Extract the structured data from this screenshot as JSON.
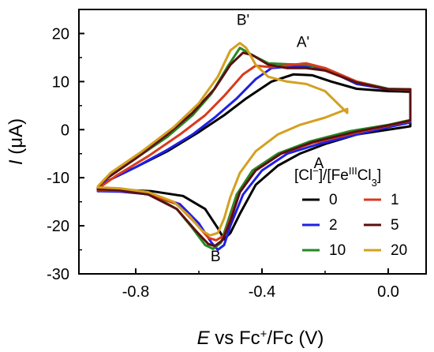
{
  "chart_data": {
    "type": "line",
    "xlabel": {
      "italic": "E",
      "rest": " vs Fc",
      "sup": "+",
      "rest2": "/Fc (V)"
    },
    "ylabel": {
      "italic": "I",
      "rest": " (μA)"
    },
    "xlim": [
      -0.98,
      0.12
    ],
    "ylim": [
      -30,
      25
    ],
    "xticks": [
      -0.8,
      -0.4,
      0.0
    ],
    "xtick_labels": [
      "-0.8",
      "-0.4",
      "0.0"
    ],
    "yticks": [
      -30,
      -20,
      -10,
      0,
      10,
      20
    ],
    "ytick_labels": [
      "-30",
      "-20",
      "-10",
      "0",
      "10",
      "20"
    ],
    "annotations": [
      {
        "text": "B'",
        "x": -0.46,
        "y": 21.8
      },
      {
        "text": "A'",
        "x": -0.27,
        "y": 17.2
      },
      {
        "text": "A",
        "x": -0.22,
        "y": -8.0
      },
      {
        "text": "B",
        "x": -0.547,
        "y": -27.4
      }
    ],
    "legend": {
      "title_parts": [
        "[Cl",
        "−",
        "]/[Fe",
        "III",
        "Cl",
        "3",
        "]"
      ],
      "placement": "bottom-right",
      "entries": [
        {
          "label": "0",
          "color": "#000000"
        },
        {
          "label": "1",
          "color": "#d93a1c"
        },
        {
          "label": "2",
          "color": "#1f1fe6"
        },
        {
          "label": "5",
          "color": "#5a1010"
        },
        {
          "label": "10",
          "color": "#238a23"
        },
        {
          "label": "20",
          "color": "#d4a020"
        }
      ]
    },
    "series": [
      {
        "name": "0",
        "color": "#000000",
        "points": [
          [
            -0.92,
            -12.5
          ],
          [
            -0.85,
            -12.5
          ],
          [
            -0.75,
            -12.8
          ],
          [
            -0.65,
            -13.8
          ],
          [
            -0.58,
            -16.5
          ],
          [
            -0.54,
            -20.5
          ],
          [
            -0.52,
            -22.8
          ],
          [
            -0.5,
            -21.5
          ],
          [
            -0.47,
            -17.5
          ],
          [
            -0.42,
            -11.5
          ],
          [
            -0.35,
            -7.5
          ],
          [
            -0.28,
            -5.0
          ],
          [
            -0.2,
            -3.0
          ],
          [
            -0.1,
            -1.0
          ],
          [
            0.0,
            0.0
          ],
          [
            0.07,
            0.7
          ],
          [
            0.07,
            7.9
          ],
          [
            0.0,
            8.0
          ],
          [
            -0.1,
            8.5
          ],
          [
            -0.18,
            10.0
          ],
          [
            -0.24,
            11.3
          ],
          [
            -0.3,
            11.5
          ],
          [
            -0.37,
            10.0
          ],
          [
            -0.45,
            6.5
          ],
          [
            -0.52,
            3.0
          ],
          [
            -0.6,
            -0.5
          ],
          [
            -0.7,
            -4.5
          ],
          [
            -0.8,
            -7.8
          ],
          [
            -0.9,
            -11.0
          ],
          [
            -0.92,
            -12.2
          ]
        ]
      },
      {
        "name": "2",
        "color": "#1f1fe6",
        "points": [
          [
            -0.92,
            -12.8
          ],
          [
            -0.85,
            -12.9
          ],
          [
            -0.75,
            -13.5
          ],
          [
            -0.66,
            -15.5
          ],
          [
            -0.6,
            -19.5
          ],
          [
            -0.56,
            -23.5
          ],
          [
            -0.54,
            -25.0
          ],
          [
            -0.52,
            -24.0
          ],
          [
            -0.5,
            -20.0
          ],
          [
            -0.46,
            -13.5
          ],
          [
            -0.4,
            -8.5
          ],
          [
            -0.32,
            -5.0
          ],
          [
            -0.22,
            -3.0
          ],
          [
            -0.1,
            -1.0
          ],
          [
            0.0,
            0.5
          ],
          [
            0.07,
            1.5
          ],
          [
            0.07,
            8.3
          ],
          [
            0.0,
            8.4
          ],
          [
            -0.1,
            9.5
          ],
          [
            -0.18,
            12.0
          ],
          [
            -0.24,
            13.2
          ],
          [
            -0.3,
            13.2
          ],
          [
            -0.37,
            12.8
          ],
          [
            -0.42,
            10.5
          ],
          [
            -0.48,
            6.5
          ],
          [
            -0.55,
            2.5
          ],
          [
            -0.62,
            -1.0
          ],
          [
            -0.7,
            -4.2
          ],
          [
            -0.8,
            -7.8
          ],
          [
            -0.9,
            -11.0
          ],
          [
            -0.92,
            -12.5
          ]
        ]
      },
      {
        "name": "10",
        "color": "#238a23",
        "points": [
          [
            -0.92,
            -12.5
          ],
          [
            -0.85,
            -12.6
          ],
          [
            -0.75,
            -13.5
          ],
          [
            -0.67,
            -16.5
          ],
          [
            -0.62,
            -20.5
          ],
          [
            -0.58,
            -24.0
          ],
          [
            -0.555,
            -24.8
          ],
          [
            -0.53,
            -23.5
          ],
          [
            -0.51,
            -19.5
          ],
          [
            -0.48,
            -13.5
          ],
          [
            -0.43,
            -8.5
          ],
          [
            -0.35,
            -5.0
          ],
          [
            -0.25,
            -2.5
          ],
          [
            -0.12,
            -0.3
          ],
          [
            0.0,
            1.0
          ],
          [
            0.07,
            2.0
          ],
          [
            0.07,
            8.4
          ],
          [
            0.0,
            8.5
          ],
          [
            -0.1,
            10.0
          ],
          [
            -0.2,
            12.8
          ],
          [
            -0.26,
            13.5
          ],
          [
            -0.32,
            13.6
          ],
          [
            -0.38,
            13.8
          ],
          [
            -0.43,
            15.5
          ],
          [
            -0.47,
            17.0
          ],
          [
            -0.51,
            13.0
          ],
          [
            -0.56,
            7.5
          ],
          [
            -0.62,
            3.0
          ],
          [
            -0.7,
            -1.5
          ],
          [
            -0.8,
            -6.0
          ],
          [
            -0.9,
            -10.5
          ],
          [
            -0.92,
            -12.2
          ]
        ]
      },
      {
        "name": "1",
        "color": "#d93a1c",
        "points": [
          [
            -0.92,
            -12.6
          ],
          [
            -0.85,
            -12.7
          ],
          [
            -0.76,
            -13.3
          ],
          [
            -0.67,
            -15.5
          ],
          [
            -0.61,
            -19.5
          ],
          [
            -0.57,
            -22.5
          ],
          [
            -0.545,
            -23.0
          ],
          [
            -0.52,
            -22.0
          ],
          [
            -0.5,
            -18.5
          ],
          [
            -0.47,
            -13.0
          ],
          [
            -0.42,
            -8.5
          ],
          [
            -0.34,
            -5.0
          ],
          [
            -0.24,
            -2.8
          ],
          [
            -0.1,
            -0.6
          ],
          [
            0.0,
            0.8
          ],
          [
            0.07,
            1.8
          ],
          [
            0.07,
            8.3
          ],
          [
            0.0,
            8.4
          ],
          [
            -0.1,
            10.0
          ],
          [
            -0.2,
            12.8
          ],
          [
            -0.26,
            13.8
          ],
          [
            -0.32,
            13.4
          ],
          [
            -0.37,
            13.0
          ],
          [
            -0.42,
            13.3
          ],
          [
            -0.46,
            11.5
          ],
          [
            -0.52,
            7.0
          ],
          [
            -0.58,
            3.0
          ],
          [
            -0.66,
            -1.0
          ],
          [
            -0.76,
            -5.5
          ],
          [
            -0.86,
            -9.5
          ],
          [
            -0.92,
            -12.3
          ]
        ]
      },
      {
        "name": "5",
        "color": "#5a1010",
        "points": [
          [
            -0.92,
            -12.4
          ],
          [
            -0.85,
            -12.6
          ],
          [
            -0.76,
            -13.5
          ],
          [
            -0.67,
            -16.5
          ],
          [
            -0.61,
            -21.0
          ],
          [
            -0.57,
            -23.8
          ],
          [
            -0.55,
            -24.2
          ],
          [
            -0.525,
            -23.0
          ],
          [
            -0.5,
            -19.0
          ],
          [
            -0.47,
            -13.0
          ],
          [
            -0.42,
            -8.5
          ],
          [
            -0.34,
            -5.0
          ],
          [
            -0.24,
            -2.6
          ],
          [
            -0.1,
            -0.4
          ],
          [
            0.0,
            0.9
          ],
          [
            0.07,
            1.9
          ],
          [
            0.07,
            8.4
          ],
          [
            0.0,
            8.4
          ],
          [
            -0.1,
            9.8
          ],
          [
            -0.2,
            12.3
          ],
          [
            -0.26,
            12.8
          ],
          [
            -0.32,
            12.8
          ],
          [
            -0.38,
            13.5
          ],
          [
            -0.43,
            15.5
          ],
          [
            -0.46,
            16.0
          ],
          [
            -0.5,
            13.5
          ],
          [
            -0.55,
            8.5
          ],
          [
            -0.62,
            3.5
          ],
          [
            -0.7,
            -1.0
          ],
          [
            -0.8,
            -6.0
          ],
          [
            -0.9,
            -10.5
          ],
          [
            -0.92,
            -12.1
          ]
        ]
      },
      {
        "name": "20",
        "color": "#d4a020",
        "points": [
          [
            -0.92,
            -12.0
          ],
          [
            -0.85,
            -12.2
          ],
          [
            -0.76,
            -13.0
          ],
          [
            -0.68,
            -15.0
          ],
          [
            -0.63,
            -18.0
          ],
          [
            -0.59,
            -21.0
          ],
          [
            -0.565,
            -22.0
          ],
          [
            -0.54,
            -21.5
          ],
          [
            -0.52,
            -18.5
          ],
          [
            -0.5,
            -14.0
          ],
          [
            -0.47,
            -9.0
          ],
          [
            -0.42,
            -4.5
          ],
          [
            -0.35,
            -1.0
          ],
          [
            -0.28,
            1.0
          ],
          [
            -0.2,
            2.5
          ],
          [
            -0.13,
            4.3
          ],
          [
            -0.13,
            3.5
          ],
          [
            -0.2,
            8.0
          ],
          [
            -0.26,
            9.5
          ],
          [
            -0.32,
            10.0
          ],
          [
            -0.38,
            11.0
          ],
          [
            -0.42,
            13.5
          ],
          [
            -0.45,
            17.0
          ],
          [
            -0.47,
            18.0
          ],
          [
            -0.5,
            16.5
          ],
          [
            -0.54,
            11.0
          ],
          [
            -0.6,
            5.5
          ],
          [
            -0.68,
            0.5
          ],
          [
            -0.78,
            -4.5
          ],
          [
            -0.88,
            -9.0
          ],
          [
            -0.92,
            -11.8
          ]
        ]
      }
    ]
  }
}
